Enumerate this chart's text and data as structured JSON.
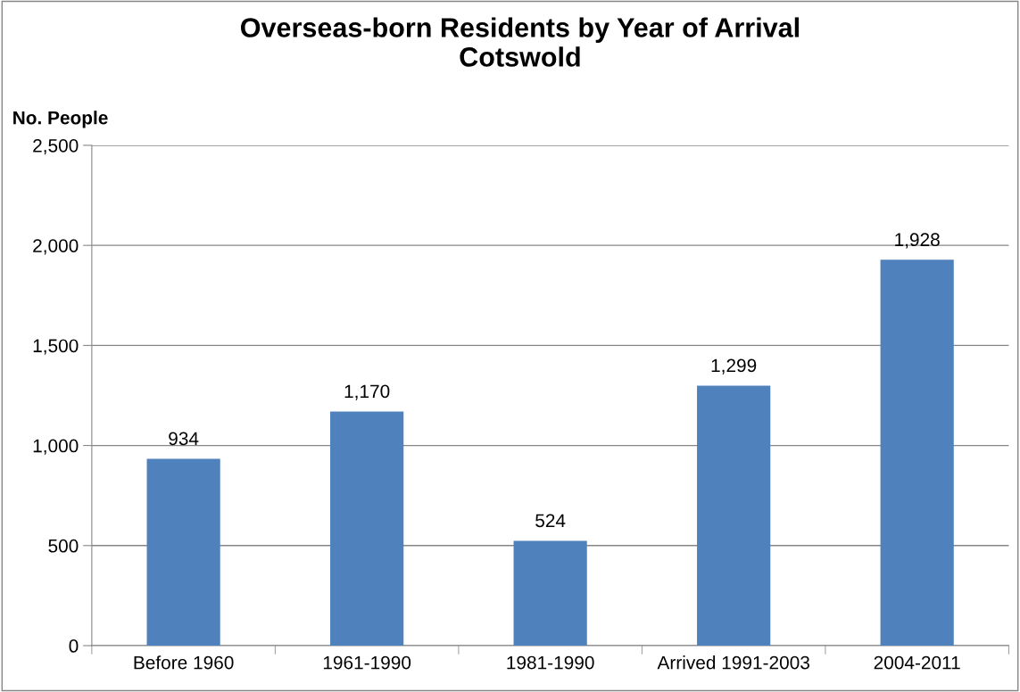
{
  "chart_data": {
    "type": "bar",
    "title": "Overseas-born Residents by Year of Arrival\nCotswold",
    "ylabel": "No. People",
    "categories": [
      "Before 1960",
      "1961-1990",
      "1981-1990",
      "Arrived 1991-2003",
      "2004-2011"
    ],
    "values": [
      934,
      1170,
      524,
      1299,
      1928
    ],
    "color": "#4f81bd",
    "value_labels": [
      "934",
      "1,170",
      "524",
      "1,299",
      "1,928"
    ],
    "ylim": [
      0,
      2500
    ],
    "yticks": [
      0,
      {
        "value": 500,
        "label": "500"
      },
      {
        "value": 1000,
        "label": "1,000"
      },
      {
        "value": 1500,
        "label": "1,500"
      },
      {
        "value": 2000,
        "label": "2,000"
      },
      {
        "value": 2500,
        "label": "2,500"
      }
    ],
    "grid": "y",
    "legend": false
  }
}
